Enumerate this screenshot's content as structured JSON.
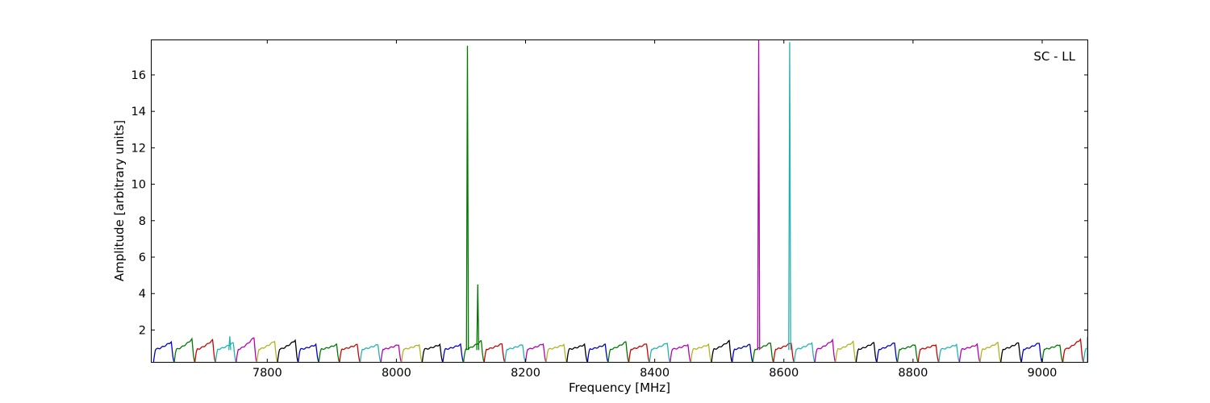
{
  "chart_data": {
    "type": "line",
    "title": "",
    "annotation": "SC - LL",
    "xlabel": "Frequency [MHz]",
    "ylabel": "Amplitude [arbitrary units]",
    "xlim": [
      7621,
      9070
    ],
    "ylim": [
      0.25,
      17.9
    ],
    "xticks": [
      7800,
      8000,
      8200,
      8400,
      8600,
      8800,
      9000
    ],
    "yticks": [
      2,
      4,
      6,
      8,
      10,
      12,
      14,
      16
    ],
    "grid": false,
    "legend": "none",
    "band_width_mhz": 32,
    "band_start_mhz": 7624,
    "colors": [
      "#0000cc",
      "#007700",
      "#cc0000",
      "#22b2b2",
      "#b200b2",
      "#b2b222",
      "#000000"
    ],
    "band_peaks": [
      1.35,
      1.5,
      1.45,
      1.3,
      1.6,
      1.4,
      1.45,
      1.2,
      1.2,
      1.2,
      1.2,
      1.2,
      1.2,
      1.2,
      1.2,
      1.4,
      1.25,
      1.2,
      1.25,
      1.2,
      1.2,
      1.2,
      1.35,
      1.25,
      1.3,
      1.2,
      1.2,
      1.4,
      1.2,
      1.3,
      1.3,
      1.3,
      1.45,
      1.35,
      1.3,
      1.3,
      1.2,
      1.2,
      1.2,
      1.2,
      1.3,
      1.3,
      1.3,
      1.2,
      1.5,
      1.6
    ],
    "spikes": [
      {
        "x": 7742,
        "y": 1.65,
        "color": "#22b2b2"
      },
      {
        "x": 8110,
        "y": 17.6,
        "color": "#007700"
      },
      {
        "x": 8126,
        "y": 4.5,
        "color": "#007700"
      },
      {
        "x": 8561,
        "y": 17.9,
        "color": "#b200b2"
      },
      {
        "x": 8609,
        "y": 17.8,
        "color": "#22b2b2"
      }
    ]
  }
}
